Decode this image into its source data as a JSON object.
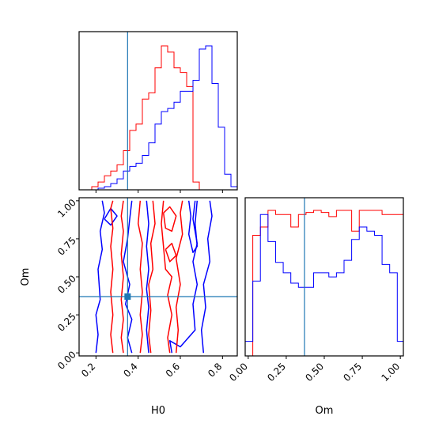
{
  "chart_data": {
    "type": "corner",
    "title": "",
    "colors": {
      "series_a": "#ff0000",
      "series_b": "#0000ff",
      "truth": "#1f77b4"
    },
    "truth": {
      "H0": 0.35,
      "Om": 0.37
    },
    "params": [
      {
        "name": "H0",
        "label": "H0",
        "range": [
          0.12,
          0.87
        ],
        "ticks": [
          0.2,
          0.4,
          0.6,
          0.8
        ],
        "tick_labels": [
          "0.2",
          "0.4",
          "0.6",
          "0.8"
        ]
      },
      {
        "name": "Om",
        "label": "Om",
        "range": [
          -0.02,
          1.02
        ],
        "ticks": [
          0.0,
          0.25,
          0.5,
          0.75,
          1.0
        ],
        "tick_labels": [
          "0.00",
          "0.25",
          "0.50",
          "0.75",
          "1.00"
        ]
      }
    ],
    "hist_H0": {
      "bin_edges": [
        0.12,
        0.15,
        0.18,
        0.21,
        0.24,
        0.27,
        0.3,
        0.33,
        0.36,
        0.39,
        0.42,
        0.45,
        0.48,
        0.51,
        0.54,
        0.57,
        0.6,
        0.63,
        0.66,
        0.69,
        0.72,
        0.75,
        0.78,
        0.81,
        0.84,
        0.87
      ],
      "series_a": [
        0,
        0,
        0.02,
        0.05,
        0.09,
        0.12,
        0.16,
        0.25,
        0.38,
        0.42,
        0.58,
        0.62,
        0.78,
        0.92,
        0.88,
        0.78,
        0.75,
        0.66,
        0.05,
        0,
        0,
        0,
        0,
        0,
        0
      ],
      "series_b": [
        0,
        0,
        0,
        0.01,
        0.02,
        0.04,
        0.07,
        0.12,
        0.15,
        0.17,
        0.22,
        0.3,
        0.42,
        0.5,
        0.52,
        0.56,
        0.63,
        0.63,
        0.7,
        0.9,
        0.92,
        0.68,
        0.4,
        0.1,
        0.02
      ]
    },
    "hist_Om": {
      "bin_edges": [
        -0.02,
        0.03,
        0.08,
        0.13,
        0.18,
        0.23,
        0.28,
        0.33,
        0.38,
        0.43,
        0.48,
        0.53,
        0.58,
        0.63,
        0.68,
        0.73,
        0.78,
        0.83,
        0.88,
        0.93,
        0.98,
        1.02
      ],
      "series_a": [
        0,
        0.58,
        0.62,
        0.7,
        0.68,
        0.68,
        0.62,
        0.68,
        0.69,
        0.7,
        0.69,
        0.67,
        0.7,
        0.7,
        0.6,
        0.7,
        0.7,
        0.7,
        0.68,
        0.68,
        0.68
      ],
      "series_b": [
        0.07,
        0.36,
        0.68,
        0.55,
        0.45,
        0.4,
        0.35,
        0.33,
        0.33,
        0.4,
        0.4,
        0.38,
        0.4,
        0.46,
        0.56,
        0.62,
        0.6,
        0.58,
        0.44,
        0.4,
        0.07
      ]
    },
    "contours": {
      "series_a": [
        [
          [
            0.28,
            0.0
          ],
          [
            0.27,
            0.12
          ],
          [
            0.28,
            0.25
          ],
          [
            0.27,
            0.4
          ],
          [
            0.28,
            0.55
          ],
          [
            0.27,
            0.7
          ],
          [
            0.28,
            0.82
          ],
          [
            0.27,
            0.95
          ],
          [
            0.28,
            1.0
          ]
        ],
        [
          [
            0.33,
            1.0
          ],
          [
            0.32,
            0.9
          ],
          [
            0.33,
            0.8
          ],
          [
            0.32,
            0.65
          ],
          [
            0.33,
            0.5
          ],
          [
            0.32,
            0.35
          ],
          [
            0.33,
            0.22
          ],
          [
            0.32,
            0.1
          ],
          [
            0.33,
            0.0
          ]
        ],
        [
          [
            0.41,
            1.0
          ],
          [
            0.4,
            0.85
          ],
          [
            0.42,
            0.72
          ],
          [
            0.41,
            0.55
          ],
          [
            0.42,
            0.4
          ],
          [
            0.41,
            0.25
          ],
          [
            0.42,
            0.12
          ],
          [
            0.41,
            0.0
          ]
        ],
        [
          [
            0.46,
            0.0
          ],
          [
            0.45,
            0.12
          ],
          [
            0.46,
            0.28
          ],
          [
            0.45,
            0.45
          ],
          [
            0.47,
            0.55
          ],
          [
            0.46,
            0.72
          ],
          [
            0.48,
            0.85
          ],
          [
            0.47,
            1.0
          ]
        ],
        [
          [
            0.52,
            1.0
          ],
          [
            0.51,
            0.85
          ],
          [
            0.52,
            0.7
          ],
          [
            0.53,
            0.55
          ],
          [
            0.56,
            0.5
          ],
          [
            0.54,
            0.38
          ],
          [
            0.56,
            0.25
          ],
          [
            0.54,
            0.1
          ],
          [
            0.55,
            0.0
          ]
        ],
        [
          [
            0.58,
            0.0
          ],
          [
            0.59,
            0.15
          ],
          [
            0.58,
            0.3
          ],
          [
            0.6,
            0.45
          ],
          [
            0.58,
            0.62
          ],
          [
            0.61,
            0.78
          ],
          [
            0.6,
            0.92
          ],
          [
            0.61,
            1.0
          ]
        ],
        [
          [
            0.52,
            0.92
          ],
          [
            0.55,
            0.96
          ],
          [
            0.58,
            0.9
          ],
          [
            0.56,
            0.8
          ],
          [
            0.53,
            0.82
          ],
          [
            0.52,
            0.92
          ]
        ],
        [
          [
            0.53,
            0.68
          ],
          [
            0.56,
            0.72
          ],
          [
            0.58,
            0.64
          ],
          [
            0.55,
            0.6
          ],
          [
            0.53,
            0.68
          ]
        ]
      ],
      "series_b": [
        [
          [
            0.2,
            0.0
          ],
          [
            0.21,
            0.12
          ],
          [
            0.2,
            0.25
          ],
          [
            0.22,
            0.35
          ],
          [
            0.21,
            0.55
          ],
          [
            0.23,
            0.68
          ],
          [
            0.22,
            0.8
          ],
          [
            0.24,
            0.92
          ],
          [
            0.23,
            1.0
          ]
        ],
        [
          [
            0.37,
            1.0
          ],
          [
            0.36,
            0.88
          ],
          [
            0.35,
            0.75
          ],
          [
            0.33,
            0.6
          ],
          [
            0.36,
            0.45
          ],
          [
            0.34,
            0.32
          ],
          [
            0.37,
            0.22
          ],
          [
            0.35,
            0.1
          ],
          [
            0.37,
            0.0
          ]
        ],
        [
          [
            0.45,
            0.0
          ],
          [
            0.44,
            0.15
          ],
          [
            0.45,
            0.3
          ],
          [
            0.44,
            0.42
          ],
          [
            0.45,
            0.55
          ],
          [
            0.44,
            0.7
          ],
          [
            0.45,
            0.85
          ],
          [
            0.44,
            1.0
          ]
        ],
        [
          [
            0.56,
            0.0
          ],
          [
            0.55,
            0.08
          ],
          [
            0.6,
            0.04
          ],
          [
            0.67,
            0.15
          ],
          [
            0.66,
            0.32
          ],
          [
            0.68,
            0.45
          ],
          [
            0.66,
            0.6
          ],
          [
            0.68,
            0.72
          ],
          [
            0.66,
            0.88
          ],
          [
            0.67,
            1.0
          ]
        ],
        [
          [
            0.71,
            0.0
          ],
          [
            0.7,
            0.15
          ],
          [
            0.72,
            0.3
          ],
          [
            0.71,
            0.45
          ],
          [
            0.74,
            0.6
          ],
          [
            0.73,
            0.75
          ],
          [
            0.75,
            0.9
          ],
          [
            0.74,
            1.0
          ]
        ],
        [
          [
            0.64,
            1.0
          ],
          [
            0.65,
            0.9
          ],
          [
            0.64,
            0.78
          ],
          [
            0.66,
            0.66
          ],
          [
            0.68,
            0.7
          ],
          [
            0.67,
            0.85
          ],
          [
            0.68,
            1.0
          ]
        ],
        [
          [
            0.24,
            0.88
          ],
          [
            0.27,
            0.84
          ],
          [
            0.3,
            0.9
          ],
          [
            0.27,
            0.95
          ],
          [
            0.24,
            0.88
          ]
        ]
      ]
    }
  }
}
